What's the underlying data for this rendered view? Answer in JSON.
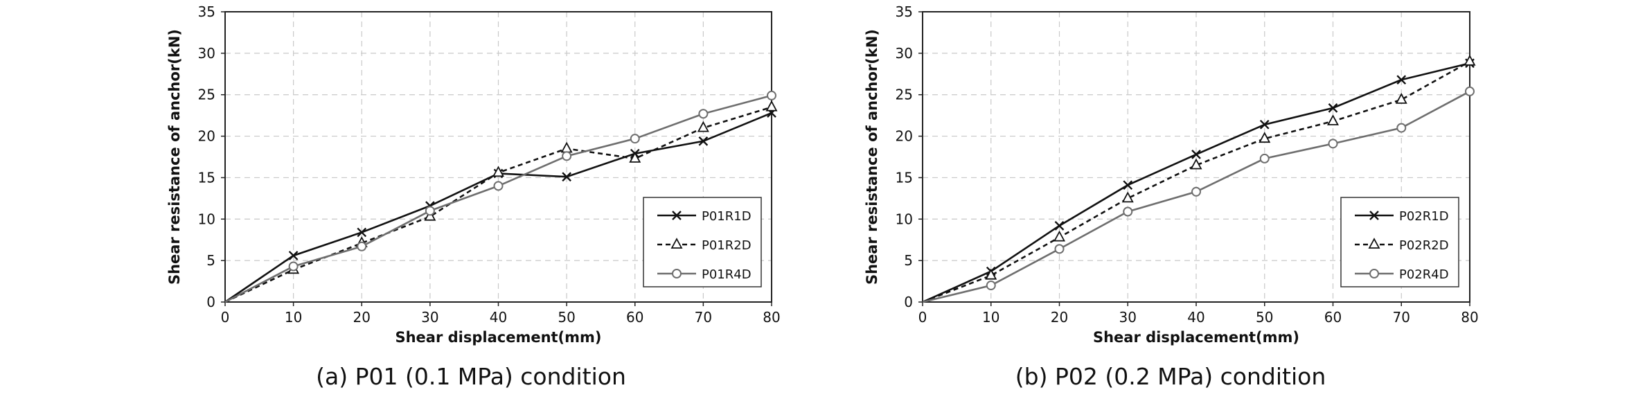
{
  "chart_data": [
    {
      "type": "line",
      "caption": "(a) P01 (0.1 MPa) condition",
      "xlabel": "Shear displacement(mm)",
      "ylabel": "Shear resistance of anchor(kN)",
      "xlim": [
        0,
        80
      ],
      "ylim": [
        0,
        35
      ],
      "xticks": [
        0,
        10,
        20,
        30,
        40,
        50,
        60,
        70,
        80
      ],
      "yticks": [
        0,
        5,
        10,
        15,
        20,
        25,
        30,
        35
      ],
      "grid": true,
      "legend_position": "right-middle",
      "series": [
        {
          "name": "P01R1D",
          "marker": "x",
          "dash": "solid",
          "color": "#111111",
          "x": [
            0,
            10,
            20,
            30,
            40,
            50,
            60,
            70,
            80
          ],
          "y": [
            0,
            5.6,
            8.4,
            11.6,
            15.5,
            15.1,
            17.9,
            19.4,
            22.8
          ]
        },
        {
          "name": "P01R2D",
          "marker": "triangle",
          "dash": "dashed",
          "color": "#111111",
          "x": [
            0,
            10,
            20,
            30,
            40,
            50,
            60,
            70,
            80
          ],
          "y": [
            0,
            3.9,
            7.1,
            10.3,
            15.6,
            18.5,
            17.3,
            21.0,
            23.5
          ]
        },
        {
          "name": "P01R4D",
          "marker": "circle",
          "dash": "solid",
          "color": "#6e6e6e",
          "x": [
            0,
            10,
            20,
            30,
            40,
            50,
            60,
            70,
            80
          ],
          "y": [
            0,
            4.3,
            6.7,
            11.0,
            14.0,
            17.6,
            19.7,
            22.7,
            24.9
          ]
        }
      ]
    },
    {
      "type": "line",
      "caption": "(b) P02 (0.2 MPa) condition",
      "xlabel": "Shear displacement(mm)",
      "ylabel": "Shear resistance of anchor(kN)",
      "xlim": [
        0,
        80
      ],
      "ylim": [
        0,
        35
      ],
      "xticks": [
        0,
        10,
        20,
        30,
        40,
        50,
        60,
        70,
        80
      ],
      "yticks": [
        0,
        5,
        10,
        15,
        20,
        25,
        30,
        35
      ],
      "grid": true,
      "legend_position": "right-middle",
      "series": [
        {
          "name": "P02R1D",
          "marker": "x",
          "dash": "solid",
          "color": "#111111",
          "x": [
            0,
            10,
            20,
            30,
            40,
            50,
            60,
            70,
            80
          ],
          "y": [
            0,
            3.7,
            9.2,
            14.1,
            17.8,
            21.4,
            23.4,
            26.8,
            28.8
          ]
        },
        {
          "name": "P02R2D",
          "marker": "triangle",
          "dash": "dashed",
          "color": "#111111",
          "x": [
            0,
            10,
            20,
            30,
            40,
            50,
            60,
            70,
            80
          ],
          "y": [
            0,
            3.2,
            7.8,
            12.5,
            16.5,
            19.7,
            21.8,
            24.4,
            29.0
          ]
        },
        {
          "name": "P02R4D",
          "marker": "circle",
          "dash": "solid",
          "color": "#6e6e6e",
          "x": [
            0,
            10,
            20,
            30,
            40,
            50,
            60,
            70,
            80
          ],
          "y": [
            0,
            2.0,
            6.4,
            10.9,
            13.3,
            17.3,
            19.1,
            21.0,
            25.4
          ]
        }
      ]
    }
  ]
}
